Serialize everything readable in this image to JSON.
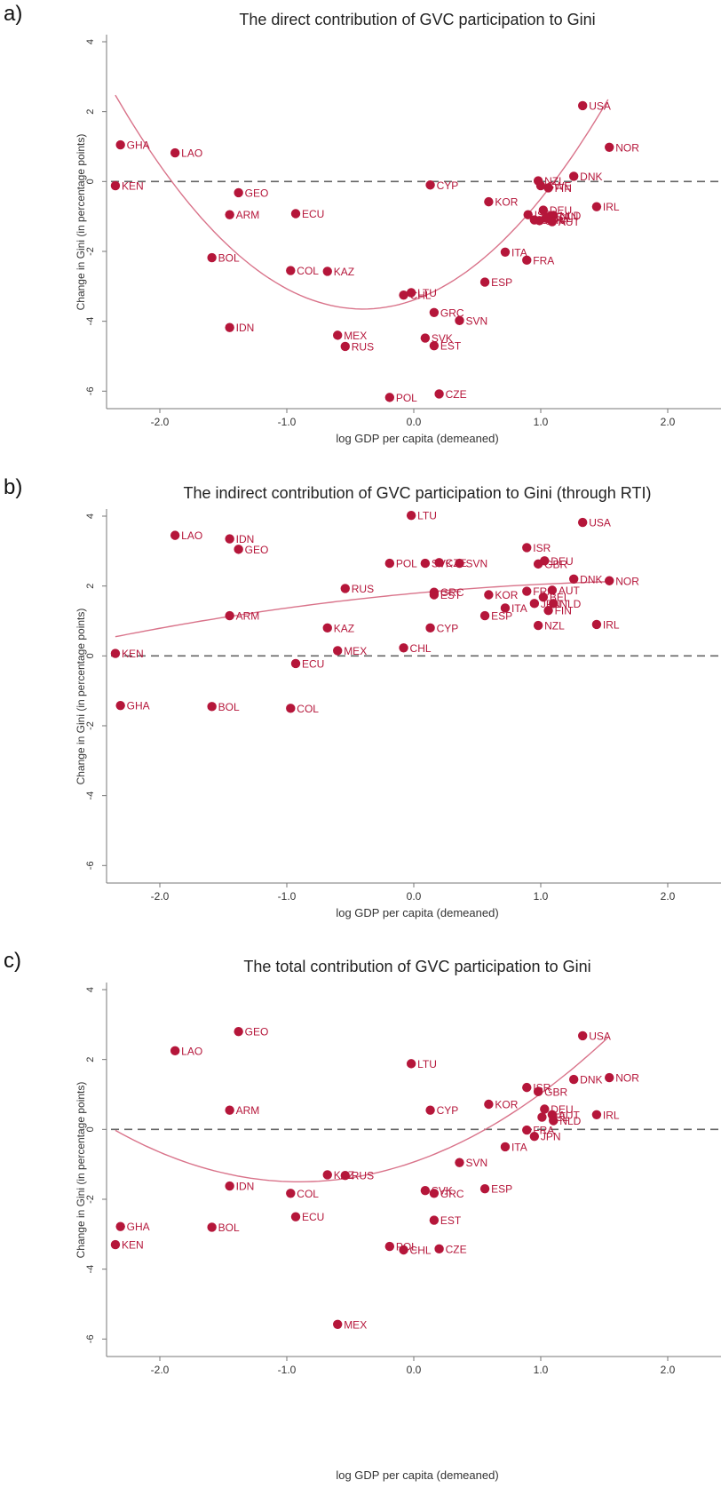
{
  "chart_data": [
    {
      "panel": "a)",
      "type": "scatter",
      "title": "The direct contribution of GVC participation to Gini",
      "xlabel": "log GDP per capita (demeaned)",
      "ylabel": "Change in Gini (in percentage points)",
      "xlim": [
        -2.4,
        2.0
      ],
      "ylim": [
        -6.2,
        4.2
      ],
      "xticks": [
        -2.0,
        -1.0,
        0.0,
        1.0,
        2.0
      ],
      "xtick_labels": [
        "-2.0",
        "-1.0",
        "0.0",
        "1.0",
        "2.0"
      ],
      "yticks": [
        4,
        2,
        0,
        -2,
        -4,
        -6
      ],
      "ytick_labels": [
        "4",
        "2",
        "0",
        "-2",
        "-4",
        "-6"
      ],
      "reference_line": 0,
      "fit_curve": "quadratic",
      "fit_coeffs": [
        -3.65,
        0.0,
        1.61,
        -0.4
      ],
      "fit_range": [
        -2.35,
        1.53
      ],
      "points": [
        {
          "label": "GHA",
          "x": -2.31,
          "y": 1.05
        },
        {
          "label": "LAO",
          "x": -1.88,
          "y": 0.82
        },
        {
          "label": "KEN",
          "x": -2.35,
          "y": -0.12
        },
        {
          "label": "GEO",
          "x": -1.38,
          "y": -0.32
        },
        {
          "label": "ARM",
          "x": -1.45,
          "y": -0.95
        },
        {
          "label": "ECU",
          "x": -0.93,
          "y": -0.92
        },
        {
          "label": "BOL",
          "x": -1.59,
          "y": -2.18
        },
        {
          "label": "COL",
          "x": -0.97,
          "y": -2.55
        },
        {
          "label": "KAZ",
          "x": -0.68,
          "y": -2.57
        },
        {
          "label": "IDN",
          "x": -1.45,
          "y": -4.18
        },
        {
          "label": "MEX",
          "x": -0.6,
          "y": -4.4
        },
        {
          "label": "RUS",
          "x": -0.54,
          "y": -4.72
        },
        {
          "label": "LTU",
          "x": -0.02,
          "y": -3.18
        },
        {
          "label": "CHL",
          "x": -0.08,
          "y": -3.25
        },
        {
          "label": "CYP",
          "x": 0.13,
          "y": -0.1
        },
        {
          "label": "GRC",
          "x": 0.16,
          "y": -3.75
        },
        {
          "label": "SVN",
          "x": 0.36,
          "y": -3.98
        },
        {
          "label": "SVK",
          "x": 0.09,
          "y": -4.48
        },
        {
          "label": "EST",
          "x": 0.16,
          "y": -4.7
        },
        {
          "label": "POL",
          "x": -0.19,
          "y": -6.18
        },
        {
          "label": "CZE",
          "x": 0.2,
          "y": -6.08
        },
        {
          "label": "KOR",
          "x": 0.59,
          "y": -0.58
        },
        {
          "label": "ESP",
          "x": 0.56,
          "y": -2.88
        },
        {
          "label": "ITA",
          "x": 0.72,
          "y": -2.02
        },
        {
          "label": "FRA",
          "x": 0.89,
          "y": -2.25
        },
        {
          "label": "USA",
          "x": 1.33,
          "y": 2.17
        },
        {
          "label": "NOR",
          "x": 1.54,
          "y": 0.98
        },
        {
          "label": "DNK",
          "x": 1.26,
          "y": 0.15
        },
        {
          "label": "NZL",
          "x": 0.98,
          "y": 0.02
        },
        {
          "label": "SWE",
          "x": 1.0,
          "y": -0.12
        },
        {
          "label": "FIN",
          "x": 1.06,
          "y": -0.18
        },
        {
          "label": "IRL",
          "x": 1.44,
          "y": -0.72
        },
        {
          "label": "DEU",
          "x": 1.02,
          "y": -0.82
        },
        {
          "label": "ISR",
          "x": 0.9,
          "y": -0.95
        },
        {
          "label": "NLD",
          "x": 1.1,
          "y": -0.97
        },
        {
          "label": "CAN",
          "x": 1.07,
          "y": -1.0
        },
        {
          "label": "BEL",
          "x": 1.04,
          "y": -1.05
        },
        {
          "label": "GBR",
          "x": 0.95,
          "y": -1.1
        },
        {
          "label": "JPN",
          "x": 0.99,
          "y": -1.12
        },
        {
          "label": "AUT",
          "x": 1.09,
          "y": -1.15
        }
      ]
    },
    {
      "panel": "b)",
      "type": "scatter",
      "title": "The indirect contribution of GVC participation to Gini (through RTI)",
      "xlabel": "log GDP per capita (demeaned)",
      "ylabel": "Change in Gini (in percentage points)",
      "xlim": [
        -2.4,
        2.0
      ],
      "ylim": [
        -6.2,
        4.2
      ],
      "xticks": [
        -2.0,
        -1.0,
        0.0,
        1.0,
        2.0
      ],
      "xtick_labels": [
        "-2.0",
        "-1.0",
        "0.0",
        "1.0",
        "2.0"
      ],
      "yticks": [
        4,
        2,
        0,
        -2,
        -4,
        -6
      ],
      "ytick_labels": [
        "4",
        "2",
        "0",
        "-2",
        "-4",
        "-6"
      ],
      "reference_line": 0,
      "fit_curve": "quadratic",
      "fit_coeffs": [
        1.79,
        0.34,
        -0.08,
        0.0
      ],
      "fit_range": [
        -2.35,
        1.53
      ],
      "points": [
        {
          "label": "LTU",
          "x": -0.02,
          "y": 4.02
        },
        {
          "label": "USA",
          "x": 1.33,
          "y": 3.82
        },
        {
          "label": "LAO",
          "x": -1.88,
          "y": 3.45
        },
        {
          "label": "IDN",
          "x": -1.45,
          "y": 3.35
        },
        {
          "label": "GEO",
          "x": -1.38,
          "y": 3.05
        },
        {
          "label": "ISR",
          "x": 0.89,
          "y": 3.1
        },
        {
          "label": "POL",
          "x": -0.19,
          "y": 2.65
        },
        {
          "label": "SVK",
          "x": 0.09,
          "y": 2.65
        },
        {
          "label": "CZE",
          "x": 0.2,
          "y": 2.67
        },
        {
          "label": "SVN",
          "x": 0.36,
          "y": 2.65
        },
        {
          "label": "DEU",
          "x": 1.03,
          "y": 2.72
        },
        {
          "label": "GBR",
          "x": 0.98,
          "y": 2.63
        },
        {
          "label": "DNK",
          "x": 1.26,
          "y": 2.2
        },
        {
          "label": "NOR",
          "x": 1.54,
          "y": 2.15
        },
        {
          "label": "RUS",
          "x": -0.54,
          "y": 1.93
        },
        {
          "label": "GRC",
          "x": 0.16,
          "y": 1.82
        },
        {
          "label": "EST",
          "x": 0.16,
          "y": 1.75
        },
        {
          "label": "KOR",
          "x": 0.59,
          "y": 1.75
        },
        {
          "label": "FRA",
          "x": 0.89,
          "y": 1.85
        },
        {
          "label": "AUT",
          "x": 1.09,
          "y": 1.88
        },
        {
          "label": "BEL",
          "x": 1.02,
          "y": 1.68
        },
        {
          "label": "JPN",
          "x": 0.95,
          "y": 1.5
        },
        {
          "label": "NLD",
          "x": 1.1,
          "y": 1.5
        },
        {
          "label": "FIN",
          "x": 1.06,
          "y": 1.3
        },
        {
          "label": "ITA",
          "x": 0.72,
          "y": 1.37
        },
        {
          "label": "ESP",
          "x": 0.56,
          "y": 1.15
        },
        {
          "label": "ARM",
          "x": -1.45,
          "y": 1.15
        },
        {
          "label": "IRL",
          "x": 1.44,
          "y": 0.9
        },
        {
          "label": "NZL",
          "x": 0.98,
          "y": 0.87
        },
        {
          "label": "KAZ",
          "x": -0.68,
          "y": 0.8
        },
        {
          "label": "CYP",
          "x": 0.13,
          "y": 0.8
        },
        {
          "label": "CHL",
          "x": -0.08,
          "y": 0.23
        },
        {
          "label": "MEX",
          "x": -0.6,
          "y": 0.15
        },
        {
          "label": "KEN",
          "x": -2.35,
          "y": 0.07
        },
        {
          "label": "ECU",
          "x": -0.93,
          "y": -0.22
        },
        {
          "label": "GHA",
          "x": -2.31,
          "y": -1.42
        },
        {
          "label": "BOL",
          "x": -1.59,
          "y": -1.45
        },
        {
          "label": "COL",
          "x": -0.97,
          "y": -1.5
        }
      ]
    },
    {
      "panel": "c)",
      "type": "scatter",
      "title": "The total contribution of GVC participation to Gini",
      "xlabel": "log GDP per capita (demeaned)",
      "ylabel": "Change in Gini (in percentage points)",
      "xlim": [
        -2.4,
        2.0
      ],
      "ylim": [
        -6.2,
        4.2
      ],
      "xticks": [
        -2.0,
        -1.0,
        0.0,
        1.0,
        2.0
      ],
      "xtick_labels": [
        "-2.0",
        "-1.0",
        "0.0",
        "1.0",
        "2.0"
      ],
      "yticks": [
        4,
        2,
        0,
        -2,
        -4,
        -6
      ],
      "ytick_labels": [
        "4",
        "2",
        "0",
        "-2",
        "-4",
        "-6"
      ],
      "reference_line": 0,
      "fit_curve": "quadratic",
      "fit_coeffs": [
        -1.5,
        0.0,
        0.7,
        -0.9
      ],
      "fit_range": [
        -2.35,
        1.53
      ],
      "points": [
        {
          "label": "GEO",
          "x": -1.38,
          "y": 2.8
        },
        {
          "label": "USA",
          "x": 1.33,
          "y": 2.68
        },
        {
          "label": "LAO",
          "x": -1.88,
          "y": 2.25
        },
        {
          "label": "LTU",
          "x": -0.02,
          "y": 1.88
        },
        {
          "label": "NOR",
          "x": 1.54,
          "y": 1.48
        },
        {
          "label": "DNK",
          "x": 1.26,
          "y": 1.43
        },
        {
          "label": "ISR",
          "x": 0.89,
          "y": 1.2
        },
        {
          "label": "GBR",
          "x": 0.98,
          "y": 1.08
        },
        {
          "label": "KOR",
          "x": 0.59,
          "y": 0.72
        },
        {
          "label": "DEU",
          "x": 1.03,
          "y": 0.58
        },
        {
          "label": "ARM",
          "x": -1.45,
          "y": 0.55
        },
        {
          "label": "CYP",
          "x": 0.13,
          "y": 0.55
        },
        {
          "label": "IRL",
          "x": 1.44,
          "y": 0.42
        },
        {
          "label": "AUT",
          "x": 1.09,
          "y": 0.42
        },
        {
          "label": "BEL",
          "x": 1.01,
          "y": 0.35
        },
        {
          "label": "NLD",
          "x": 1.1,
          "y": 0.25
        },
        {
          "label": "FRA",
          "x": 0.89,
          "y": -0.02
        },
        {
          "label": "JPN",
          "x": 0.95,
          "y": -0.2
        },
        {
          "label": "ITA",
          "x": 0.72,
          "y": -0.5
        },
        {
          "label": "SVN",
          "x": 0.36,
          "y": -0.95
        },
        {
          "label": "KAZ",
          "x": -0.68,
          "y": -1.3
        },
        {
          "label": "RUS",
          "x": -0.54,
          "y": -1.32
        },
        {
          "label": "IDN",
          "x": -1.45,
          "y": -1.62
        },
        {
          "label": "ESP",
          "x": 0.56,
          "y": -1.7
        },
        {
          "label": "SVK",
          "x": 0.09,
          "y": -1.75
        },
        {
          "label": "GRC",
          "x": 0.16,
          "y": -1.83
        },
        {
          "label": "COL",
          "x": -0.97,
          "y": -1.83
        },
        {
          "label": "ECU",
          "x": -0.93,
          "y": -2.5
        },
        {
          "label": "EST",
          "x": 0.16,
          "y": -2.6
        },
        {
          "label": "GHA",
          "x": -2.31,
          "y": -2.78
        },
        {
          "label": "BOL",
          "x": -1.59,
          "y": -2.8
        },
        {
          "label": "KEN",
          "x": -2.35,
          "y": -3.3
        },
        {
          "label": "POL",
          "x": -0.19,
          "y": -3.35
        },
        {
          "label": "CHL",
          "x": -0.08,
          "y": -3.45
        },
        {
          "label": "CZE",
          "x": 0.2,
          "y": -3.42
        },
        {
          "label": "MEX",
          "x": -0.6,
          "y": -5.58
        }
      ]
    }
  ],
  "colors": {
    "point": "#b5163a",
    "label": "#b5163a",
    "fit": "#d9738a",
    "zero_line": "#666666",
    "axis": "#777777",
    "tick_text": "#333333"
  }
}
